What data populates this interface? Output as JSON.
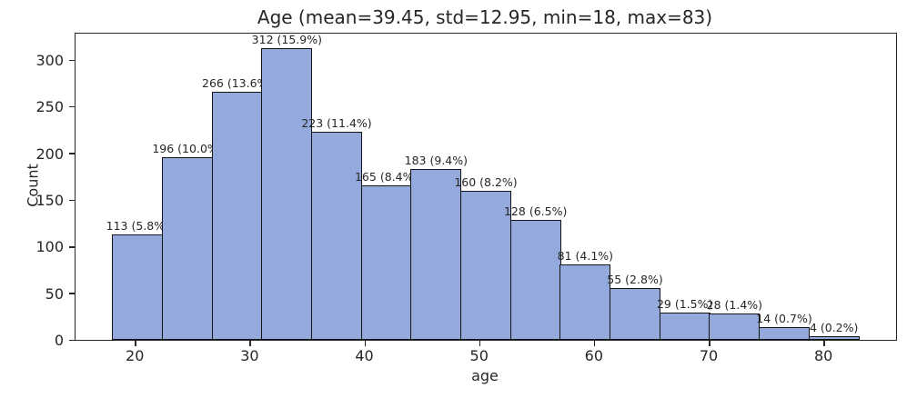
{
  "chart_data": {
    "type": "bar",
    "subtype": "histogram",
    "title": "Age (mean=39.45, std=12.95, min=18, max=83)",
    "xlabel": "age",
    "ylabel": "Count",
    "bin_start": 18,
    "bin_end": 83,
    "num_bins": 15,
    "counts": [
      113,
      196,
      266,
      312,
      223,
      165,
      183,
      160,
      128,
      81,
      55,
      29,
      28,
      14,
      4
    ],
    "bar_labels": [
      "113 (5.8%)",
      "196 (10.0%)",
      "266 (13.6%)",
      "312 (15.9%)",
      "223 (11.4%)",
      "165 (8.4%)",
      "183 (9.4%)",
      "160 (8.2%)",
      "128 (6.5%)",
      "81 (4.1%)",
      "55 (2.8%)",
      "29 (1.5%)",
      "28 (1.4%)",
      "14 (0.7%)",
      "4 (0.2%)"
    ],
    "x_ticks": [
      20,
      30,
      40,
      50,
      60,
      70,
      80
    ],
    "y_ticks": [
      0,
      50,
      100,
      150,
      200,
      250,
      300
    ],
    "xlim": [
      14.75,
      86.25
    ],
    "ylim": [
      0,
      328
    ],
    "grid": false,
    "legend": false,
    "bar_color": "#94aadc",
    "bar_edge_color": "#141414",
    "text_color": "#262626"
  }
}
